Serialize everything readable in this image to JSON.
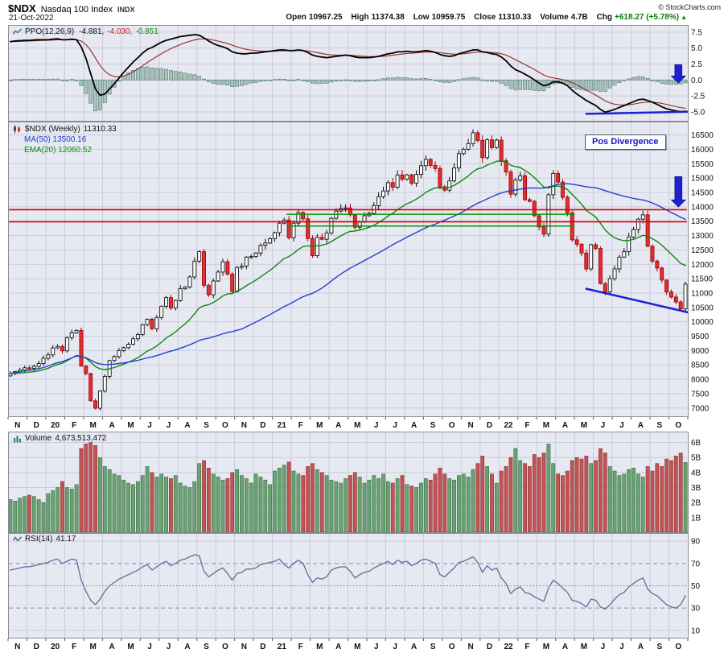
{
  "header": {
    "symbol": "$NDX",
    "index_name": "Nasdaq 100 Index",
    "exchange": "INDX",
    "date": "21-Oct-2022",
    "copyright": "© StockCharts.com",
    "quote": {
      "open_label": "Open",
      "open_value": "10967.25",
      "high_label": "High",
      "high_value": "11374.38",
      "low_label": "Low",
      "low_value": "10959.75",
      "close_label": "Close",
      "close_value": "11310.33",
      "volume_label": "Volume",
      "volume_value": "4.7B",
      "chg_label": "Chg",
      "chg_value": "+618.27 (+5.78%)",
      "chg_arrow": "▲"
    }
  },
  "legends": {
    "ppo": {
      "name": "PPO(12,26,9)",
      "ppo_value": "-4.881,",
      "signal_value": "-4.030,",
      "hist_value": "-0.851"
    },
    "price": {
      "name": "$NDX (Weekly)",
      "close": "11310.33",
      "ma50": "MA(50) 13500.16",
      "ema20": "EMA(20) 12060.52"
    },
    "volume": {
      "name": "Volume",
      "value": "4,673,513,472"
    },
    "rsi": {
      "name": "RSI(14)",
      "value": "41.17"
    }
  },
  "annotations": {
    "pos_divergence": "Pos Divergence"
  },
  "x_axis": {
    "weeks_per_month": 4,
    "month_labels": [
      "N",
      "D",
      "20",
      "F",
      "M",
      "A",
      "M",
      "J",
      "J",
      "A",
      "S",
      "O",
      "N",
      "D",
      "21",
      "F",
      "M",
      "A",
      "M",
      "J",
      "J",
      "A",
      "S",
      "O",
      "N",
      "D",
      "22",
      "F",
      "M",
      "A",
      "M",
      "J",
      "J",
      "A",
      "S",
      "O"
    ]
  },
  "colors": {
    "plot_bg": "#e7e9f2",
    "grid": "#c9ccd9",
    "panel_border": "#8a8a9a",
    "up_candle": "#ffffff",
    "up_border": "#111111",
    "down_candle": "#e03232",
    "down_border": "#a80000",
    "ma50": "#2142cc",
    "ema20": "#0a8a0a",
    "ppo_line": "#000000",
    "ppo_signal": "#9b3333",
    "histogram": "#a9c3bd",
    "histogram_border": "#5f837b",
    "volume_up": "#69a371",
    "volume_up_border": "#3c6b44",
    "volume_down": "#c25454",
    "volume_down_border": "#8c3232",
    "rsi_line": "#5d6c9a",
    "annotation_blue": "#1c22cf",
    "level_red": "#dd0000",
    "level_green": "#009900"
  },
  "chart_data": [
    {
      "panel": "ppo",
      "type": "line",
      "title": "PPO(12,26,9) -4.881, -4.030, -0.851",
      "note": "PPO line (black); signal = 9-period EMA of PPO (red); histogram = PPO - signal (teal bars)",
      "ylim": [
        -6.45,
        8.55
      ],
      "yticks": [
        7.5,
        5.0,
        2.5,
        0.0,
        -2.5,
        -5.0
      ],
      "values": [
        6.0,
        6.1,
        6.15,
        6.2,
        6.2,
        6.25,
        6.3,
        6.3,
        6.3,
        6.4,
        6.45,
        6.3,
        6.3,
        6.4,
        6.3,
        5.2,
        3.4,
        1.0,
        -1.4,
        -2.4,
        -2.2,
        -1.4,
        -0.6,
        0.3,
        1.2,
        2.0,
        2.8,
        3.5,
        4.2,
        4.8,
        5.1,
        5.5,
        5.9,
        6.2,
        6.4,
        6.6,
        6.8,
        6.9,
        7.0,
        7.1,
        7.0,
        6.6,
        6.1,
        5.7,
        5.4,
        5.2,
        4.9,
        4.4,
        4.2,
        4.1,
        4.1,
        4.2,
        4.2,
        4.3,
        4.4,
        4.5,
        4.6,
        4.7,
        4.7,
        4.6,
        4.6,
        4.7,
        4.6,
        4.3,
        3.9,
        3.7,
        3.6,
        3.5,
        3.6,
        3.7,
        3.8,
        3.9,
        3.8,
        3.6,
        3.5,
        3.5,
        3.5,
        3.6,
        3.7,
        3.9,
        4.1,
        4.2,
        4.4,
        4.4,
        4.5,
        4.4,
        4.4,
        4.5,
        4.6,
        4.5,
        4.3,
        4.0,
        3.8,
        3.7,
        3.8,
        4.1,
        4.3,
        4.5,
        4.7,
        4.7,
        4.4,
        4.3,
        4.1,
        4.0,
        3.6,
        3.0,
        2.2,
        1.6,
        1.3,
        0.9,
        0.5,
        0.0,
        -0.5,
        -0.9,
        -0.7,
        -0.3,
        -0.3,
        -0.5,
        -0.9,
        -1.6,
        -2.2,
        -2.7,
        -3.2,
        -3.6,
        -4.0,
        -4.6,
        -5.05,
        -4.85,
        -4.6,
        -4.3,
        -4.0,
        -3.7,
        -3.4,
        -3.1,
        -3.0,
        -3.2,
        -3.5,
        -3.8,
        -4.2,
        -4.5,
        -4.7,
        -4.85,
        -4.95,
        -4.881
      ],
      "trendline": {
        "from_week": 122.5,
        "from_value": -5.3,
        "to_week": 144,
        "to_value": -4.98
      },
      "arrow": {
        "week": 141.5,
        "from_value": 2.4,
        "to_value": -0.5
      }
    },
    {
      "panel": "price",
      "type": "candlestick",
      "title": "$NDX (Weekly) 11310.33",
      "overlays": [
        {
          "name": "MA(50)",
          "last_value": 13500.16
        },
        {
          "name": "EMA(20)",
          "last_value": 12060.52
        }
      ],
      "ylim": [
        6700,
        16950
      ],
      "ytick_min": 7000,
      "ytick_max": 16500,
      "ytick_step": 500,
      "weekly_close": [
        8200,
        8270,
        8320,
        8400,
        8380,
        8450,
        8550,
        8730,
        8850,
        9090,
        9140,
        8990,
        9450,
        9620,
        9700,
        8460,
        8200,
        7250,
        6994,
        7590,
        8100,
        8650,
        8790,
        9000,
        9100,
        9220,
        9410,
        9555,
        9900,
        10090,
        9760,
        10150,
        10540,
        10840,
        10480,
        10740,
        11150,
        11210,
        11560,
        12110,
        12440,
        11270,
        10940,
        11420,
        11730,
        12090,
        11660,
        11050,
        11890,
        11940,
        12250,
        12270,
        12390,
        12660,
        12740,
        12890,
        13100,
        13430,
        13540,
        12925,
        13430,
        13800,
        13580,
        12900,
        12300,
        12940,
        12870,
        13090,
        13600,
        13850,
        13940,
        13960,
        13720,
        13290,
        13470,
        13690,
        13770,
        14040,
        14350,
        14550,
        14840,
        14680,
        15110,
        14960,
        15110,
        14820,
        15130,
        15430,
        15650,
        15440,
        15330,
        14690,
        14580,
        14900,
        15350,
        15850,
        16000,
        16200,
        16575,
        16310,
        15710,
        16330,
        16060,
        16320,
        15600,
        15210,
        14440,
        14930,
        15080,
        14250,
        14190,
        13690,
        13300,
        13050,
        14420,
        15160,
        14860,
        14330,
        13790,
        12850,
        12700,
        12390,
        11840,
        12680,
        12550,
        11330,
        11040,
        11500,
        11840,
        12250,
        12440,
        12950,
        13210,
        13570,
        13720,
        12630,
        12110,
        11870,
        11450,
        11040,
        10860,
        10690,
        10450,
        11310.33
      ],
      "levels": {
        "red": [
          13900,
          13480
        ],
        "green": [
          {
            "value": 13740,
            "from_week": 59,
            "to_week": 120
          },
          {
            "value": 13330,
            "from_week": 59,
            "to_week": 120
          }
        ]
      },
      "trendline": {
        "from_week": 122.5,
        "from_value": 11150,
        "to_week": 144,
        "to_value": 10330
      },
      "arrow": {
        "week": 141.5,
        "from_value": 15050,
        "to_value": 13990
      }
    },
    {
      "panel": "volume",
      "type": "bar",
      "title": "Volume 4,673,513,472",
      "ylim": [
        0,
        6.7
      ],
      "yticks": [
        6,
        5,
        4,
        3,
        2,
        1
      ],
      "ytick_suffix": "B",
      "values_billions": [
        2.2,
        2.1,
        2.3,
        2.4,
        2.5,
        2.4,
        2.2,
        2.0,
        2.6,
        2.8,
        3.0,
        3.4,
        3.0,
        2.9,
        3.2,
        5.6,
        5.9,
        6.0,
        5.8,
        5.0,
        4.4,
        4.2,
        3.9,
        3.8,
        3.5,
        3.3,
        3.2,
        3.4,
        3.8,
        4.4,
        4.0,
        3.7,
        3.9,
        3.7,
        3.6,
        3.8,
        3.3,
        3.1,
        3.0,
        3.4,
        4.6,
        4.8,
        4.3,
        3.9,
        3.7,
        3.5,
        3.6,
        4.0,
        4.2,
        3.8,
        3.6,
        3.3,
        3.9,
        3.7,
        3.5,
        3.2,
        4.1,
        4.3,
        4.5,
        4.7,
        4.1,
        3.9,
        3.8,
        4.4,
        4.6,
        4.2,
        4.0,
        3.8,
        3.5,
        3.4,
        3.3,
        3.6,
        3.8,
        4.0,
        3.7,
        3.3,
        3.5,
        3.8,
        3.6,
        3.9,
        3.4,
        3.3,
        3.6,
        3.8,
        3.2,
        3.1,
        3.0,
        3.3,
        3.6,
        3.5,
        3.9,
        4.3,
        3.9,
        3.6,
        3.5,
        3.8,
        3.9,
        3.7,
        4.2,
        4.6,
        5.1,
        4.4,
        3.9,
        3.3,
        4.1,
        4.4,
        5.0,
        5.6,
        4.8,
        4.6,
        4.4,
        5.2,
        5.0,
        5.3,
        5.9,
        4.6,
        3.9,
        3.8,
        4.1,
        4.8,
        5.0,
        4.9,
        5.1,
        4.6,
        4.8,
        5.6,
        5.3,
        4.4,
        4.1,
        3.8,
        3.9,
        4.2,
        4.3,
        3.9,
        3.7,
        4.4,
        4.1,
        4.6,
        4.4,
        4.9,
        4.8,
        5.1,
        5.3,
        4.67
      ]
    },
    {
      "panel": "rsi",
      "type": "line",
      "title": "RSI(14) 41.17",
      "ylim": [
        3,
        97
      ],
      "yticks": [
        90,
        70,
        50,
        30,
        10
      ],
      "values": [
        64,
        65,
        66,
        67,
        67,
        68,
        69,
        70,
        71,
        73,
        74,
        70,
        72,
        74,
        73,
        55,
        45,
        37,
        33,
        38,
        45,
        50,
        53,
        56,
        58,
        60,
        62,
        64,
        67,
        69,
        64,
        67,
        70,
        72,
        68,
        70,
        73,
        74,
        76,
        78,
        77,
        63,
        58,
        61,
        64,
        66,
        61,
        55,
        61,
        62,
        65,
        65,
        66,
        69,
        70,
        71,
        72,
        74,
        69,
        66,
        70,
        73,
        70,
        60,
        53,
        57,
        56,
        58,
        64,
        66,
        67,
        67,
        63,
        57,
        60,
        62,
        63,
        66,
        68,
        70,
        72,
        69,
        73,
        71,
        72,
        68,
        70,
        73,
        74,
        72,
        70,
        60,
        58,
        62,
        66,
        71,
        72,
        74,
        76,
        71,
        62,
        68,
        64,
        66,
        57,
        52,
        43,
        47,
        49,
        44,
        43,
        40,
        38,
        36,
        48,
        55,
        52,
        48,
        44,
        37,
        36,
        34,
        31,
        38,
        37,
        31,
        29,
        33,
        38,
        42,
        44,
        49,
        52,
        55,
        57,
        47,
        43,
        41,
        37,
        33,
        31,
        30,
        33,
        41.17
      ]
    }
  ]
}
